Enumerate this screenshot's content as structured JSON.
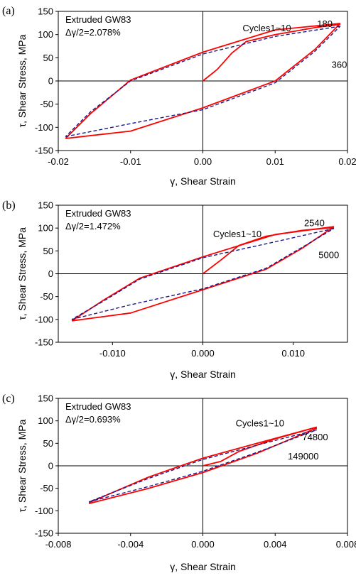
{
  "chart_data": [
    {
      "type": "line",
      "panel_label": "(a)",
      "xlabel": "γ, Shear Strain",
      "ylabel": "τ, Shear Stress, MPa",
      "xlim": [
        -0.02,
        0.02
      ],
      "ylim": [
        -150,
        150
      ],
      "xticks": [
        -0.02,
        -0.01,
        0.0,
        0.01,
        0.02
      ],
      "xtick_labels": [
        "-0.02",
        "-0.01",
        "0.00",
        "0.01",
        "0.02"
      ],
      "yticks": [
        -150,
        -100,
        -50,
        0,
        50,
        100,
        150
      ],
      "ytick_labels": [
        "-150",
        "-100",
        "-50",
        "0",
        "50",
        "100",
        "150"
      ],
      "text_lines": [
        "Extruded GW83",
        "Δγ/2=2.078%"
      ],
      "annotations": [
        {
          "text": "Cycles1~10",
          "x": 0.0122,
          "y": 107
        },
        {
          "text": "180",
          "x": 0.0158,
          "y": 116
        },
        {
          "text": "360",
          "x": 0.0178,
          "y": 28
        }
      ],
      "series": [
        {
          "color": "#ff0000",
          "style": "solid",
          "points": [
            [
              0.0,
              0
            ],
            [
              0.002,
              25
            ],
            [
              0.004,
              60
            ],
            [
              0.006,
              85
            ],
            [
              0.01,
              100
            ],
            [
              0.0155,
              115
            ],
            [
              0.019,
              122
            ]
          ]
        },
        {
          "color": "#ff0000",
          "style": "solid",
          "points": [
            [
              0.019,
              124
            ],
            [
              0.01,
              110
            ],
            [
              0.0,
              62
            ],
            [
              -0.01,
              2
            ],
            [
              -0.0155,
              -70
            ],
            [
              -0.019,
              -124
            ]
          ]
        },
        {
          "color": "#ff0000",
          "style": "solid",
          "points": [
            [
              -0.019,
              -124
            ],
            [
              -0.01,
              -108
            ],
            [
              0.0,
              -58
            ],
            [
              0.01,
              0
            ],
            [
              0.0155,
              68
            ],
            [
              0.019,
              124
            ]
          ]
        },
        {
          "color": "#1a1a8c",
          "style": "dashed",
          "points": [
            [
              0.019,
              118
            ],
            [
              0.01,
              96
            ],
            [
              0.0,
              58
            ],
            [
              -0.01,
              0
            ],
            [
              -0.0155,
              -66
            ],
            [
              -0.019,
              -120
            ]
          ]
        },
        {
          "color": "#1a1a8c",
          "style": "dashed",
          "points": [
            [
              -0.019,
              -120
            ],
            [
              -0.01,
              -92
            ],
            [
              0.0,
              -62
            ],
            [
              0.01,
              -4
            ],
            [
              0.0155,
              64
            ],
            [
              0.019,
              118
            ]
          ]
        }
      ]
    },
    {
      "type": "line",
      "panel_label": "(b)",
      "xlabel": "γ, Shear Strain",
      "ylabel": "τ, Shear Stress, MPa",
      "xlim": [
        -0.016,
        0.016
      ],
      "ylim": [
        -150,
        150
      ],
      "xticks": [
        -0.01,
        0.0,
        0.01
      ],
      "xtick_labels": [
        "-0.010",
        "0.000",
        "0.010"
      ],
      "yticks": [
        -150,
        -100,
        -50,
        0,
        50,
        100,
        150
      ],
      "ytick_labels": [
        "-150",
        "-100",
        "-50",
        "0",
        "50",
        "100",
        "150"
      ],
      "text_lines": [
        "Extruded GW83",
        "Δγ/2=1.472%"
      ],
      "annotations": [
        {
          "text": "Cycles1~10",
          "x": 0.0065,
          "y": 80
        },
        {
          "text": "2540",
          "x": 0.0112,
          "y": 104
        },
        {
          "text": "5000",
          "x": 0.0128,
          "y": 34
        }
      ],
      "series": [
        {
          "color": "#ff0000",
          "style": "solid",
          "points": [
            [
              0.0,
              0
            ],
            [
              0.002,
              30
            ],
            [
              0.004,
              62
            ],
            [
              0.007,
              82
            ],
            [
              0.011,
              95
            ],
            [
              0.0145,
              101
            ]
          ]
        },
        {
          "color": "#ff0000",
          "style": "solid",
          "points": [
            [
              0.0145,
              103
            ],
            [
              0.008,
              86
            ],
            [
              0.0,
              37
            ],
            [
              -0.007,
              -10
            ],
            [
              -0.011,
              -58
            ],
            [
              -0.0145,
              -103
            ]
          ]
        },
        {
          "color": "#ff0000",
          "style": "solid",
          "points": [
            [
              -0.0145,
              -103
            ],
            [
              -0.008,
              -86
            ],
            [
              0.0,
              -35
            ],
            [
              0.007,
              10
            ],
            [
              0.011,
              56
            ],
            [
              0.0145,
              103
            ]
          ]
        },
        {
          "color": "#1a1a8c",
          "style": "dashed",
          "points": [
            [
              0.0145,
              99
            ],
            [
              0.008,
              70
            ],
            [
              0.0,
              35
            ],
            [
              -0.007,
              -12
            ],
            [
              -0.011,
              -60
            ],
            [
              -0.0145,
              -100
            ]
          ]
        },
        {
          "color": "#1a1a8c",
          "style": "dashed",
          "points": [
            [
              -0.0145,
              -100
            ],
            [
              -0.008,
              -68
            ],
            [
              0.0,
              -33
            ],
            [
              0.007,
              12
            ],
            [
              0.011,
              58
            ],
            [
              0.0145,
              99
            ]
          ]
        }
      ]
    },
    {
      "type": "line",
      "panel_label": "(c)",
      "xlabel": "γ, Shear Strain",
      "ylabel": "τ, Shear Stress, MPa",
      "xlim": [
        -0.008,
        0.008
      ],
      "ylim": [
        -150,
        150
      ],
      "xticks": [
        -0.008,
        -0.004,
        0.0,
        0.004,
        0.008
      ],
      "xtick_labels": [
        "-0.008",
        "-0.004",
        "0.000",
        "0.004",
        "0.008"
      ],
      "yticks": [
        -150,
        -100,
        -50,
        0,
        50,
        100,
        150
      ],
      "ytick_labels": [
        "-150",
        "-100",
        "-50",
        "0",
        "50",
        "100",
        "150"
      ],
      "text_lines": [
        "Extruded GW83",
        "Δγ/2=0.693%"
      ],
      "annotations": [
        {
          "text": "Cycles1~10",
          "x": 0.0045,
          "y": 88
        },
        {
          "text": "74800",
          "x": 0.0055,
          "y": 57
        },
        {
          "text": "149000",
          "x": 0.0047,
          "y": 14
        }
      ],
      "series": [
        {
          "color": "#ff0000",
          "style": "solid",
          "points": [
            [
              0.0,
              0
            ],
            [
              0.001,
              10
            ],
            [
              0.002,
              32
            ],
            [
              0.004,
              60
            ],
            [
              0.0063,
              86
            ]
          ]
        },
        {
          "color": "#ff0000",
          "style": "solid",
          "points": [
            [
              0.0063,
              86
            ],
            [
              0.003,
              50
            ],
            [
              0.0,
              17
            ],
            [
              -0.003,
              -25
            ],
            [
              -0.0063,
              -82
            ]
          ]
        },
        {
          "color": "#ff0000",
          "style": "solid",
          "points": [
            [
              -0.0063,
              -84
            ],
            [
              -0.003,
              -50
            ],
            [
              0.0,
              -15
            ],
            [
              0.003,
              28
            ],
            [
              0.0063,
              84
            ]
          ]
        },
        {
          "color": "#1a1a8c",
          "style": "dashed",
          "points": [
            [
              0.0063,
              80
            ],
            [
              0.003,
              46
            ],
            [
              0.0,
              14
            ],
            [
              -0.003,
              -28
            ],
            [
              -0.0063,
              -80
            ]
          ]
        },
        {
          "color": "#1a1a8c",
          "style": "dashed",
          "points": [
            [
              -0.0063,
              -80
            ],
            [
              -0.003,
              -46
            ],
            [
              0.0,
              -12
            ],
            [
              0.003,
              30
            ],
            [
              0.0063,
              80
            ]
          ]
        }
      ]
    }
  ]
}
